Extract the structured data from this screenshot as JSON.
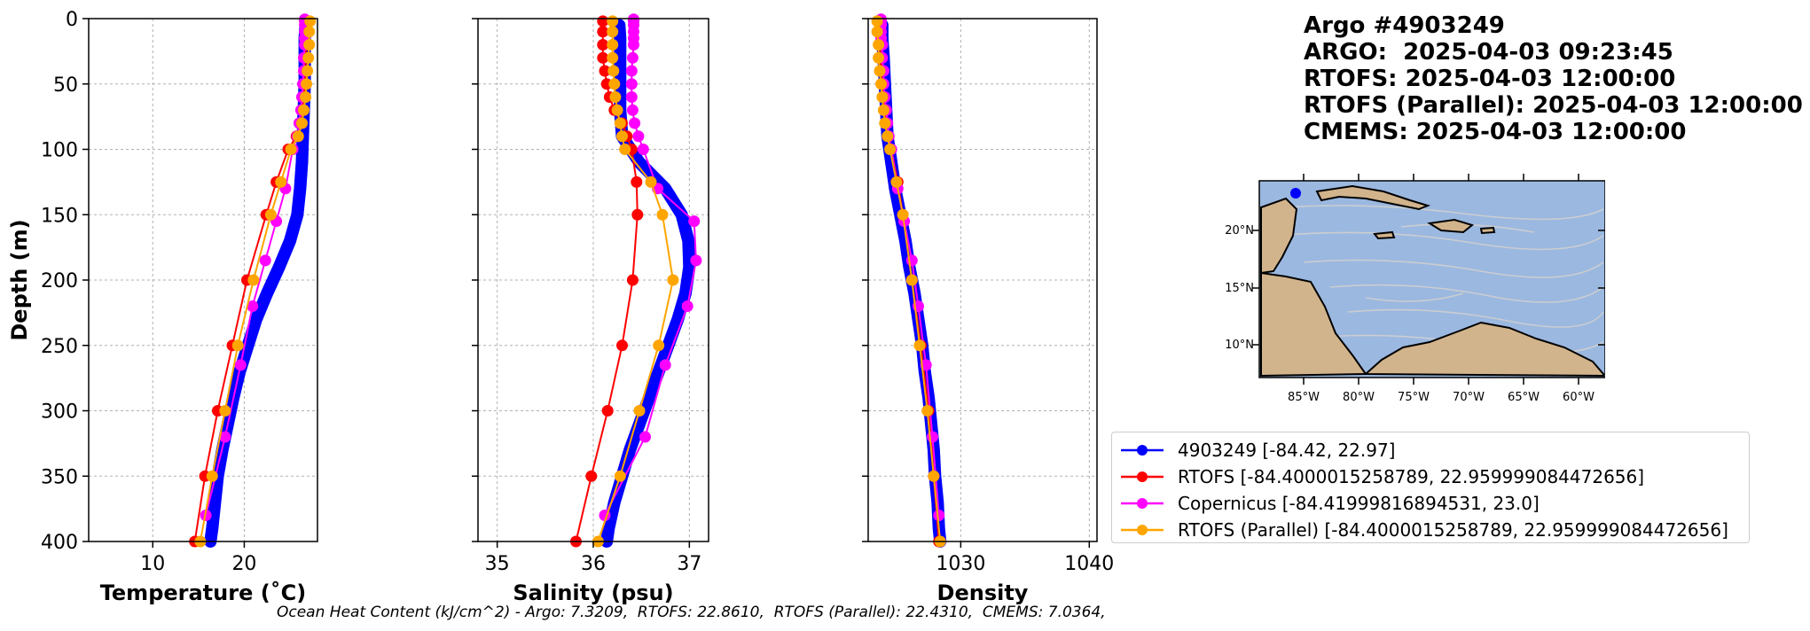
{
  "header": {
    "line1": "Argo #4903249",
    "line2": "ARGO:  2025-04-03 09:23:45",
    "line3": "RTOFS: 2025-04-03 12:00:00",
    "line4": "RTOFS (Parallel): 2025-04-03 12:00:00",
    "line5": "CMEMS: 2025-04-03 12:00:00"
  },
  "footer": {
    "ohc_text": "Ocean Heat Content (kJ/cm^2) - Argo: 7.3209,  RTOFS: 22.8610,  RTOFS (Parallel): 22.4310,  CMEMS: 7.0364,"
  },
  "legend": [
    {
      "label": "4903249 [-84.42, 22.97]",
      "color": "#0000ff"
    },
    {
      "label": "RTOFS [-84.4000015258789, 22.959999084472656]",
      "color": "#ff0000"
    },
    {
      "label": "Copernicus [-84.41999816894531, 23.0]",
      "color": "#ff00ff"
    },
    {
      "label": "RTOFS (Parallel) [-84.4000015258789, 22.959999084472656]",
      "color": "#ffa500"
    }
  ],
  "map": {
    "lat_labels": [
      "20°N",
      "15°N",
      "10°N"
    ],
    "lon_labels": [
      "85°W",
      "80°W",
      "75°W",
      "70°W",
      "65°W",
      "60°W"
    ],
    "ocean_color": "#9bb8e0",
    "land_color": "#d2b48c",
    "float_marker_color": "#0000ff"
  },
  "chart_data": [
    {
      "type": "line",
      "xlabel": "Temperature (˚C)",
      "ylabel": "Depth (m)",
      "xlim": [
        3,
        28
      ],
      "ylim": [
        400,
        0
      ],
      "xticks": [
        "10",
        "20"
      ],
      "yticks": [
        "0",
        "50",
        "100",
        "150",
        "200",
        "250",
        "300",
        "350",
        "400"
      ],
      "grid": true,
      "series": [
        {
          "name": "4903249 [-84.42, 22.97]",
          "color": "#0000ff",
          "depth": [
            5,
            15,
            30,
            50,
            70,
            90,
            110,
            130,
            150,
            170,
            190,
            210,
            230,
            250,
            270,
            290,
            310,
            330,
            350,
            370,
            390,
            400
          ],
          "values": [
            26.7,
            26.6,
            26.6,
            26.6,
            26.5,
            26.4,
            26.3,
            26.1,
            25.8,
            25.0,
            23.8,
            22.5,
            21.3,
            20.4,
            19.5,
            18.8,
            18.2,
            17.6,
            17.1,
            16.8,
            16.5,
            16.3
          ]
        },
        {
          "name": "RTOFS [-84.4000015258789, 22.959999084472656]",
          "color": "#ff0000",
          "depth": [
            2,
            10,
            20,
            30,
            40,
            50,
            60,
            70,
            80,
            90,
            100,
            125,
            150,
            200,
            250,
            300,
            350,
            400
          ],
          "values": [
            26.8,
            26.8,
            26.8,
            26.7,
            26.7,
            26.6,
            26.5,
            26.4,
            26.2,
            25.7,
            24.8,
            23.5,
            22.4,
            20.3,
            18.7,
            17.1,
            15.7,
            14.6
          ]
        },
        {
          "name": "Copernicus [-84.41999816894531, 23.0]",
          "color": "#ff00ff",
          "depth": [
            0.5,
            2,
            5,
            10,
            15,
            20,
            30,
            40,
            50,
            60,
            70,
            80,
            90,
            100,
            130,
            155,
            185,
            220,
            265,
            320,
            380
          ],
          "values": [
            26.6,
            26.6,
            26.6,
            26.6,
            26.6,
            26.6,
            26.5,
            26.5,
            26.4,
            26.3,
            26.2,
            26.0,
            25.8,
            25.3,
            24.5,
            23.5,
            22.3,
            20.9,
            19.6,
            17.9,
            15.8
          ]
        },
        {
          "name": "RTOFS (Parallel) [-84.4000015258789, 22.959999084472656]",
          "color": "#ffa500",
          "depth": [
            2,
            10,
            20,
            30,
            40,
            50,
            60,
            70,
            80,
            90,
            100,
            125,
            150,
            200,
            250,
            300,
            350,
            400
          ],
          "values": [
            27.2,
            27.1,
            27.1,
            27.0,
            26.9,
            26.8,
            26.7,
            26.5,
            26.3,
            25.9,
            25.1,
            24.0,
            22.9,
            21.0,
            19.3,
            17.9,
            16.5,
            15.2
          ]
        }
      ]
    },
    {
      "type": "line",
      "xlabel": "Salinity (psu)",
      "ylabel": "",
      "xlim": [
        34.8,
        37.2
      ],
      "ylim": [
        400,
        0
      ],
      "xticks": [
        "35",
        "36",
        "37"
      ],
      "grid": true,
      "series": [
        {
          "name": "4903249 [-84.42, 22.97]",
          "color": "#0000ff",
          "depth": [
            5,
            15,
            30,
            50,
            70,
            90,
            110,
            130,
            150,
            170,
            190,
            210,
            230,
            250,
            270,
            290,
            310,
            330,
            350,
            370,
            390,
            400
          ],
          "values": [
            36.27,
            36.28,
            36.28,
            36.28,
            36.28,
            36.3,
            36.48,
            36.75,
            36.92,
            36.99,
            37.0,
            36.96,
            36.88,
            36.78,
            36.68,
            36.58,
            36.48,
            36.38,
            36.3,
            36.22,
            36.16,
            36.14
          ]
        },
        {
          "name": "RTOFS [-84.4000015258789, 22.959999084472656]",
          "color": "#ff0000",
          "depth": [
            2,
            10,
            20,
            30,
            40,
            50,
            60,
            70,
            80,
            90,
            100,
            125,
            150,
            200,
            250,
            300,
            350,
            400
          ],
          "values": [
            36.1,
            36.1,
            36.1,
            36.1,
            36.12,
            36.14,
            36.17,
            36.22,
            36.3,
            36.35,
            36.4,
            36.45,
            36.46,
            36.41,
            36.3,
            36.15,
            35.98,
            35.82
          ]
        },
        {
          "name": "Copernicus [-84.41999816894531, 23.0]",
          "color": "#ff00ff",
          "depth": [
            0.5,
            2,
            5,
            10,
            15,
            20,
            30,
            40,
            50,
            60,
            70,
            80,
            90,
            100,
            130,
            155,
            185,
            220,
            265,
            320,
            380
          ],
          "values": [
            36.42,
            36.42,
            36.42,
            36.42,
            36.42,
            36.42,
            36.41,
            36.4,
            36.4,
            36.4,
            36.41,
            36.43,
            36.47,
            36.52,
            36.67,
            37.05,
            37.07,
            36.98,
            36.75,
            36.54,
            36.12
          ]
        },
        {
          "name": "RTOFS (Parallel) [-84.4000015258789, 22.959999084472656]",
          "color": "#ffa500",
          "depth": [
            2,
            10,
            20,
            30,
            40,
            50,
            60,
            70,
            80,
            90,
            100,
            125,
            150,
            200,
            250,
            300,
            350,
            400
          ],
          "values": [
            36.2,
            36.2,
            36.2,
            36.2,
            36.21,
            36.22,
            36.23,
            36.25,
            36.28,
            36.3,
            36.33,
            36.6,
            36.72,
            36.83,
            36.68,
            36.48,
            36.28,
            36.05
          ]
        }
      ]
    },
    {
      "type": "line",
      "xlabel": "Density",
      "ylabel": "",
      "xlim": [
        1022.8,
        1040.6
      ],
      "ylim": [
        400,
        0
      ],
      "xticks": [
        "1030",
        "1040"
      ],
      "grid": true,
      "series": [
        {
          "name": "4903249 [-84.42, 22.97]",
          "color": "#0000ff",
          "depth": [
            5,
            15,
            30,
            50,
            70,
            90,
            110,
            130,
            150,
            170,
            190,
            210,
            230,
            250,
            270,
            290,
            310,
            330,
            350,
            370,
            390,
            400
          ],
          "values": [
            1023.9,
            1023.9,
            1024.0,
            1024.1,
            1024.2,
            1024.3,
            1024.6,
            1024.9,
            1025.3,
            1025.7,
            1026.0,
            1026.4,
            1026.7,
            1027.0,
            1027.2,
            1027.5,
            1027.7,
            1027.9,
            1028.0,
            1028.2,
            1028.3,
            1028.4
          ]
        },
        {
          "name": "RTOFS [-84.4000015258789, 22.959999084472656]",
          "color": "#ff0000",
          "depth": [
            2,
            10,
            20,
            30,
            40,
            50,
            60,
            70,
            80,
            90,
            100,
            125,
            150,
            200,
            250,
            300,
            350,
            400
          ],
          "values": [
            1023.6,
            1023.6,
            1023.7,
            1023.8,
            1023.8,
            1023.9,
            1024.0,
            1024.1,
            1024.2,
            1024.4,
            1024.6,
            1025.1,
            1025.5,
            1026.2,
            1026.9,
            1027.5,
            1027.9,
            1028.3
          ]
        },
        {
          "name": "Copernicus [-84.41999816894531, 23.0]",
          "color": "#ff00ff",
          "depth": [
            0.5,
            2,
            5,
            10,
            15,
            20,
            30,
            40,
            50,
            60,
            70,
            80,
            90,
            100,
            130,
            155,
            185,
            220,
            265,
            320,
            380
          ],
          "values": [
            1023.8,
            1023.8,
            1023.8,
            1023.8,
            1023.8,
            1023.9,
            1023.9,
            1024.0,
            1024.0,
            1024.1,
            1024.2,
            1024.3,
            1024.4,
            1024.6,
            1025.1,
            1025.6,
            1026.2,
            1026.7,
            1027.3,
            1027.8,
            1028.3
          ]
        },
        {
          "name": "RTOFS (Parallel) [-84.4000015258789, 22.959999084472656]",
          "color": "#ffa500",
          "depth": [
            2,
            10,
            20,
            30,
            40,
            50,
            60,
            70,
            80,
            90,
            100,
            125,
            150,
            200,
            250,
            300,
            350,
            400
          ],
          "values": [
            1023.5,
            1023.5,
            1023.6,
            1023.6,
            1023.7,
            1023.8,
            1023.9,
            1024.0,
            1024.1,
            1024.3,
            1024.5,
            1025.0,
            1025.5,
            1026.2,
            1026.8,
            1027.4,
            1027.9,
            1028.4
          ]
        }
      ]
    }
  ]
}
